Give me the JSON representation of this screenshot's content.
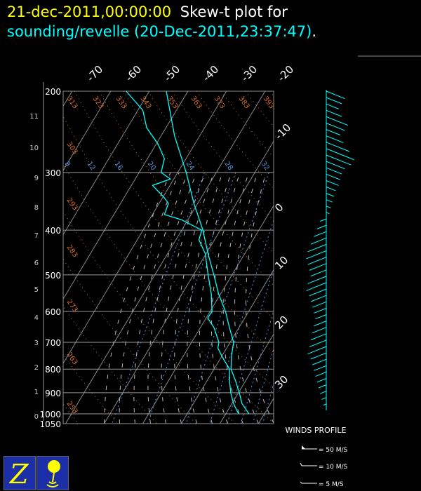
{
  "title": {
    "datetime": "21-dec-2011,00:00:00",
    "label": "Skew-t plot for",
    "source": "sounding/revelle (20-Dec-2011,23:37:47)",
    "period": "."
  },
  "colors": {
    "title_date": "#ffff00",
    "title_source": "#00ffff",
    "sounding": "#00ffff",
    "dry_adiabat": "#d2691e",
    "mixing_ratio": "#4f8fd6",
    "isotherm": "#888888",
    "isobar": "#999999",
    "wind": "#00ffff"
  },
  "chart_data": {
    "type": "line",
    "chart_kind": "skew-t log-p",
    "pressure_ticks": [
      200,
      300,
      400,
      500,
      600,
      700,
      800,
      900,
      1000,
      1050
    ],
    "height_ticks_km": [
      0,
      1,
      2,
      3,
      4,
      5,
      6,
      7,
      8,
      9,
      10,
      11
    ],
    "isotherm_labels": [
      -70,
      -60,
      -50,
      -40,
      -30,
      -20,
      -10,
      0,
      10,
      20,
      30
    ],
    "dry_adiabat_labels": [
      253,
      263,
      273,
      283,
      293,
      303,
      313,
      323,
      333,
      343,
      353,
      363,
      373,
      383,
      393
    ],
    "mixing_ratio_labels": [
      8,
      12,
      16,
      20,
      24,
      28,
      32
    ],
    "plim": [
      1050,
      200
    ],
    "series": [
      {
        "role": "temperature",
        "points": [
          [
            1000,
            26
          ],
          [
            950,
            22.6
          ],
          [
            900,
            20.2
          ],
          [
            850,
            17.5
          ],
          [
            800,
            14.4
          ],
          [
            750,
            12.5
          ],
          [
            700,
            10.9
          ],
          [
            650,
            7.5
          ],
          [
            600,
            4
          ],
          [
            550,
            -0.5
          ],
          [
            500,
            -4.7
          ],
          [
            450,
            -9.5
          ],
          [
            400,
            -14.5
          ],
          [
            350,
            -21
          ],
          [
            300,
            -27.8
          ],
          [
            250,
            -36.5
          ],
          [
            200,
            -45.6
          ]
        ]
      },
      {
        "role": "dewpoint",
        "points": [
          [
            1000,
            23.3
          ],
          [
            950,
            20.4
          ],
          [
            900,
            18
          ],
          [
            850,
            15.9
          ],
          [
            800,
            14
          ],
          [
            750,
            10
          ],
          [
            720,
            7.7
          ],
          [
            700,
            7.1
          ],
          [
            650,
            3.5
          ],
          [
            620,
            0.4
          ],
          [
            600,
            0.5
          ],
          [
            550,
            -2.4
          ],
          [
            500,
            -6.2
          ],
          [
            450,
            -10.2
          ],
          [
            420,
            -14
          ],
          [
            400,
            -14.8
          ],
          [
            380,
            -21.6
          ],
          [
            370,
            -26.9
          ],
          [
            350,
            -27.6
          ],
          [
            340,
            -29.6
          ],
          [
            320,
            -34.5
          ],
          [
            310,
            -30.9
          ],
          [
            300,
            -34.3
          ],
          [
            280,
            -35.6
          ],
          [
            260,
            -39.6
          ],
          [
            240,
            -45
          ],
          [
            220,
            -48.7
          ],
          [
            200,
            -56
          ]
        ]
      }
    ],
    "wind_profile": {
      "title": "WINDS PROFILE",
      "speeds_ms": [
        12,
        10,
        8,
        10,
        14,
        12,
        9,
        11,
        15,
        18,
        16,
        12,
        10,
        9,
        8,
        6,
        5,
        4,
        3,
        2,
        4,
        6,
        8,
        10,
        12,
        13,
        12,
        11,
        10,
        12,
        13,
        11,
        10,
        9,
        8,
        7,
        8,
        9,
        10,
        11,
        12,
        10,
        9,
        8,
        7,
        6,
        5,
        4,
        3,
        2
      ],
      "legend": [
        "= 50 M/S",
        "= 10 M/S",
        "= 5 M/S"
      ]
    }
  }
}
